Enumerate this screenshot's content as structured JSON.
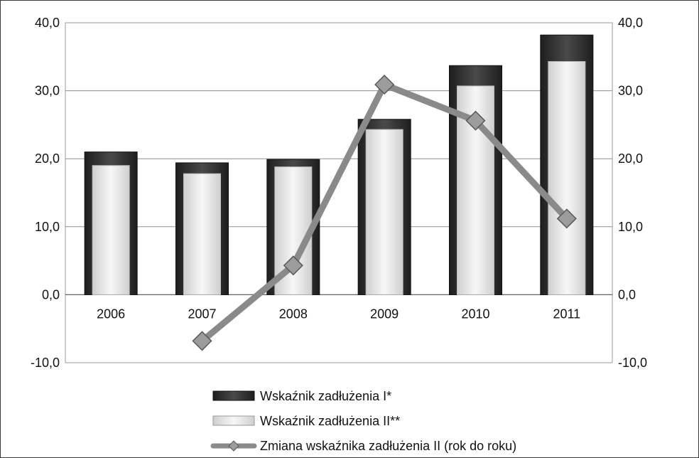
{
  "chart_data": {
    "type": "bar",
    "categories": [
      "2006",
      "2007",
      "2008",
      "2009",
      "2010",
      "2011"
    ],
    "series": [
      {
        "name": "Wskaźnik zadłużenia I*",
        "kind": "bar",
        "axis": "left",
        "color": "#3b3b3b",
        "values": [
          21.0,
          19.4,
          19.9,
          25.8,
          33.7,
          38.2
        ]
      },
      {
        "name": "Wskaźnik zadłużenia II**",
        "kind": "bar",
        "axis": "left",
        "color": "#e6e6e6",
        "values": [
          19.0,
          17.8,
          18.8,
          24.3,
          30.7,
          34.3
        ]
      },
      {
        "name": "Zmiana wskaźnika zadłużenia II (rok do roku)",
        "kind": "line",
        "axis": "right",
        "color": "#8a8a8a",
        "values": [
          null,
          -6.8,
          4.3,
          30.9,
          25.6,
          11.2
        ]
      }
    ],
    "yticks_left": [
      "40,0",
      "30,0",
      "20,0",
      "10,0",
      "0,0",
      "-10,0"
    ],
    "yticks_right": [
      "40,0",
      "30,0",
      "20,0",
      "10,0",
      "0,0",
      "-10,0"
    ],
    "ylim": [
      -10,
      40
    ],
    "y2lim": [
      -10,
      40
    ],
    "grid": true,
    "legend_position": "bottom"
  }
}
